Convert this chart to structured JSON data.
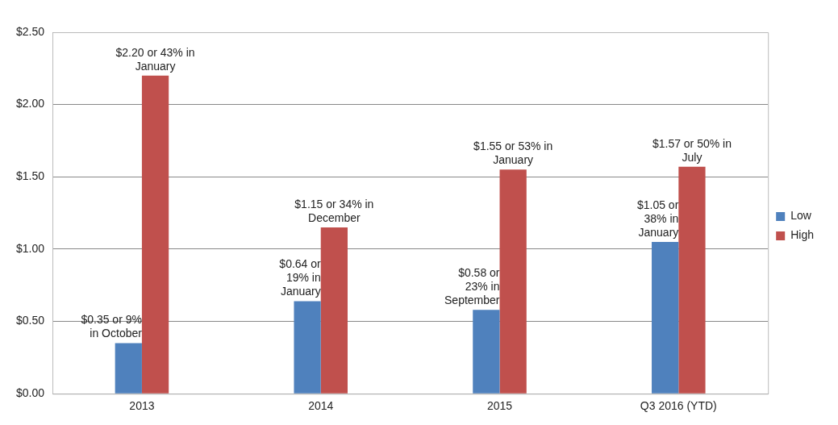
{
  "chart_data": {
    "type": "bar",
    "categories": [
      "2013",
      "2014",
      "2015",
      "Q3 2016 (YTD)"
    ],
    "series": [
      {
        "name": "Low",
        "color": "#4f81bd",
        "values": [
          0.35,
          0.64,
          0.58,
          1.05
        ],
        "value_labels": [
          "$0.35 or 9% in October",
          "$0.64 or 19% in January",
          "$0.58 or 23% in September",
          "$1.05 or 38% in January"
        ]
      },
      {
        "name": "High",
        "color": "#c0504d",
        "values": [
          2.2,
          1.15,
          1.55,
          1.57
        ],
        "value_labels": [
          "$2.20 or 43% in January",
          "$1.15 or 34% in December",
          "$1.55 or 53% in January",
          "$1.57 or 50% in July"
        ]
      }
    ],
    "ylim": [
      0,
      2.5
    ],
    "yticks": [
      {
        "value": 0,
        "label": "$0.00"
      },
      {
        "value": 0.5,
        "label": "$0.50"
      },
      {
        "value": 1,
        "label": "$1.00"
      },
      {
        "value": 1.5,
        "label": "$1.50"
      },
      {
        "value": 2,
        "label": "$2.00"
      },
      {
        "value": 2.5,
        "label": "$2.50"
      }
    ],
    "grid": "y",
    "legend": "right"
  }
}
